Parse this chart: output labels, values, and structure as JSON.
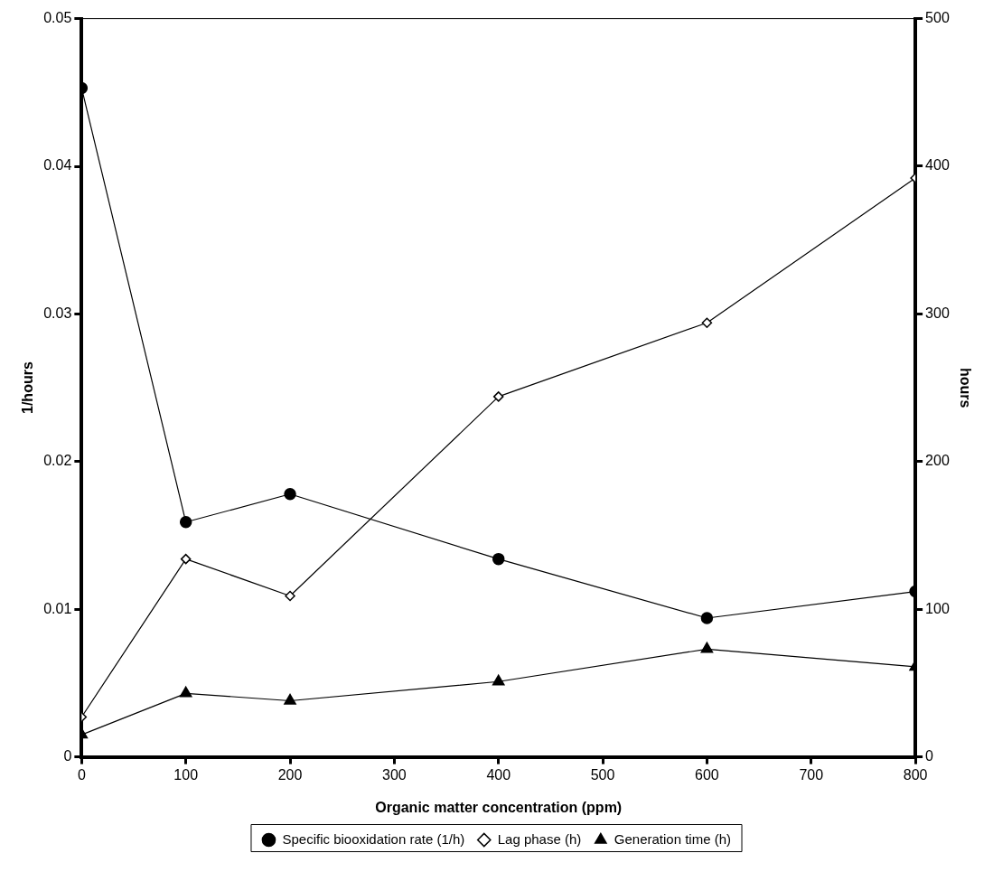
{
  "chart_data": {
    "type": "line",
    "xlabel": "Organic matter concentration (ppm)",
    "ylabel": "1/hours",
    "y2label": "hours",
    "x": [
      0,
      100,
      200,
      400,
      600,
      800
    ],
    "xlim": [
      0,
      800
    ],
    "xticks": [
      0,
      100,
      200,
      300,
      400,
      500,
      600,
      700,
      800
    ],
    "ylim": [
      0,
      0.05
    ],
    "yticks": [
      0,
      0.01,
      0.02,
      0.03,
      0.04,
      0.05
    ],
    "y2lim": [
      0,
      500
    ],
    "y2ticks": [
      0,
      100,
      200,
      300,
      400,
      500
    ],
    "series": [
      {
        "name": "Specific biooxidation rate (1/h)",
        "color": "#000000",
        "marker": "circle",
        "values": [
          0.0453,
          0.0159,
          0.0178,
          0.0134,
          0.0094,
          0.0112
        ]
      },
      {
        "name": "Lag phase (h)",
        "color": "#000000",
        "marker": "diamond",
        "axis": "y2",
        "values": [
          27,
          134,
          109,
          244,
          294,
          392
        ]
      },
      {
        "name": "Generation time (h)",
        "color": "#000000",
        "marker": "triangle",
        "axis": "y2",
        "values": [
          15,
          43,
          38,
          51,
          73,
          61
        ]
      }
    ],
    "grid": false,
    "legend": "bottom",
    "line_style": "solid"
  }
}
